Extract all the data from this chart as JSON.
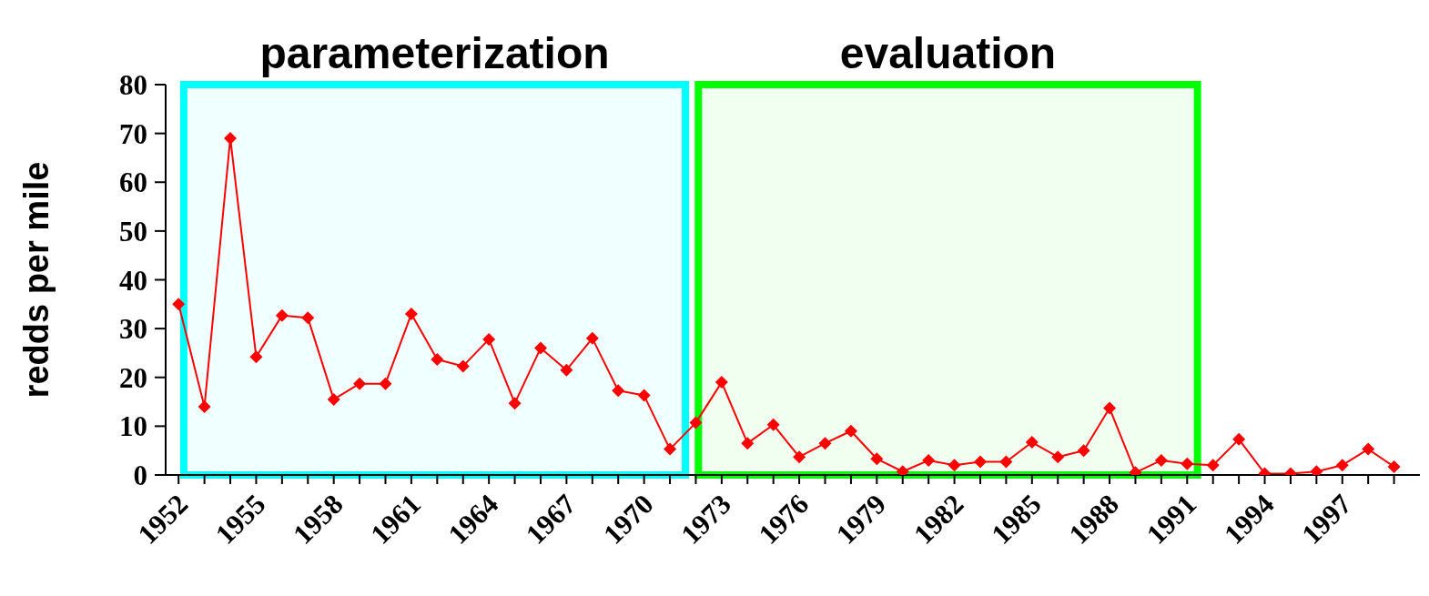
{
  "chart_data": {
    "type": "line",
    "ylabel": "redds per mile",
    "x": [
      1952,
      1953,
      1954,
      1955,
      1956,
      1957,
      1958,
      1959,
      1960,
      1961,
      1962,
      1963,
      1964,
      1965,
      1966,
      1967,
      1968,
      1969,
      1970,
      1971,
      1972,
      1973,
      1974,
      1975,
      1976,
      1977,
      1978,
      1979,
      1980,
      1981,
      1982,
      1983,
      1984,
      1985,
      1986,
      1987,
      1988,
      1989,
      1990,
      1991,
      1992,
      1993,
      1994,
      1995,
      1996,
      1997,
      1998,
      1999
    ],
    "series": [
      {
        "color": "#ff0000",
        "values": [
          35,
          14,
          69,
          24.2,
          32.7,
          32.2,
          15.5,
          18.7,
          18.7,
          33,
          23.7,
          22.3,
          27.8,
          14.7,
          26,
          21.5,
          28,
          17.3,
          16.3,
          5.3,
          10.7,
          19,
          6.5,
          10.3,
          3.7,
          6.5,
          9,
          3.3,
          0.7,
          3,
          2,
          2.7,
          2.7,
          6.7,
          3.7,
          5,
          13.7,
          0.5,
          3,
          2.3,
          2,
          7.3,
          0.3,
          0.3,
          0.7,
          2,
          5.3,
          1.7
        ]
      }
    ],
    "marker": "diamond",
    "line_style": "solid",
    "xlim": [
      1951.5,
      2000
    ],
    "xticks": [
      1952,
      {
        "value": 1953,
        "label": null
      },
      {
        "value": 1954,
        "label": null
      },
      1955,
      {
        "value": 1956,
        "label": null
      },
      {
        "value": 1957,
        "label": null
      },
      1958,
      {
        "value": 1959,
        "label": null
      },
      {
        "value": 1960,
        "label": null
      },
      1961,
      {
        "value": 1962,
        "label": null
      },
      {
        "value": 1963,
        "label": null
      },
      1964,
      {
        "value": 1965,
        "label": null
      },
      {
        "value": 1966,
        "label": null
      },
      1967,
      {
        "value": 1968,
        "label": null
      },
      {
        "value": 1969,
        "label": null
      },
      1970,
      {
        "value": 1971,
        "label": null
      },
      {
        "value": 1972,
        "label": null
      },
      1973,
      {
        "value": 1974,
        "label": null
      },
      {
        "value": 1975,
        "label": null
      },
      1976,
      {
        "value": 1977,
        "label": null
      },
      {
        "value": 1978,
        "label": null
      },
      1979,
      {
        "value": 1980,
        "label": null
      },
      {
        "value": 1981,
        "label": null
      },
      1982,
      {
        "value": 1983,
        "label": null
      },
      {
        "value": 1984,
        "label": null
      },
      1985,
      {
        "value": 1986,
        "label": null
      },
      {
        "value": 1987,
        "label": null
      },
      1988,
      {
        "value": 1989,
        "label": null
      },
      {
        "value": 1990,
        "label": null
      },
      1991,
      {
        "value": 1992,
        "label": null
      },
      {
        "value": 1993,
        "label": null
      },
      1994,
      {
        "value": 1995,
        "label": null
      },
      {
        "value": 1996,
        "label": null
      },
      1997,
      {
        "value": 1998,
        "label": null
      },
      {
        "value": 1999,
        "label": null
      }
    ],
    "ylim": [
      0,
      80
    ],
    "yticks": [
      0,
      10,
      20,
      30,
      40,
      50,
      60,
      70,
      80
    ],
    "grid": false,
    "legend": false,
    "bands": [
      {
        "axis": "x",
        "from": 1952.2,
        "to": 1971.6,
        "label": "parameterization",
        "color": "#00ffff"
      },
      {
        "axis": "x",
        "from": 1972.1,
        "to": 1991.4,
        "label": "evaluation",
        "color": "#00ff00"
      }
    ]
  }
}
